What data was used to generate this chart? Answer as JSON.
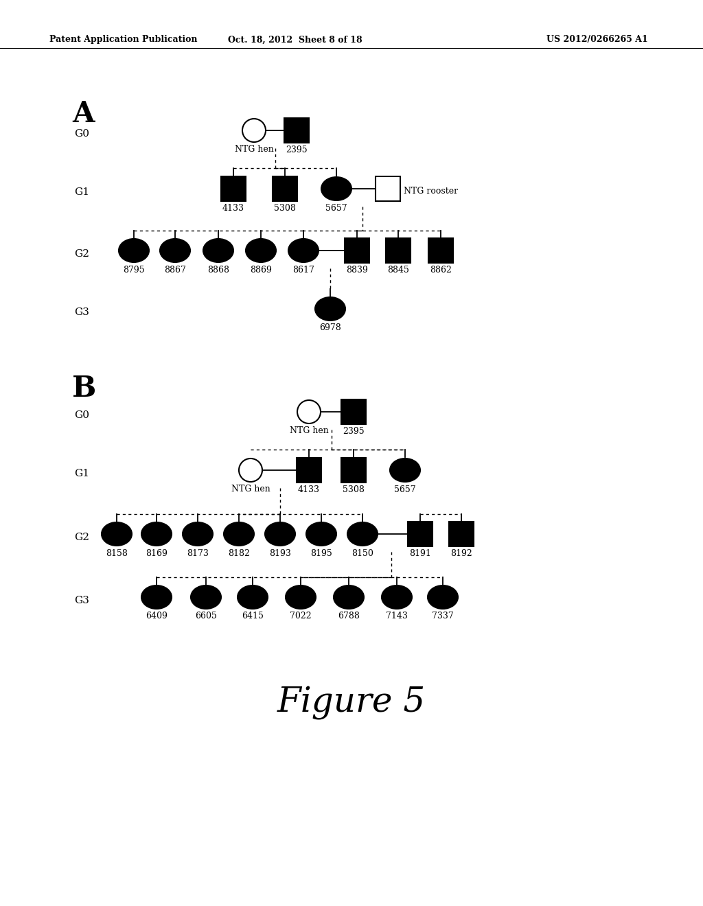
{
  "header_left": "Patent Application Publication",
  "header_mid": "Oct. 18, 2012  Sheet 8 of 18",
  "header_right": "US 2012/0266265 A1",
  "figure_label": "Figure 5",
  "bg_color": "#ffffff"
}
